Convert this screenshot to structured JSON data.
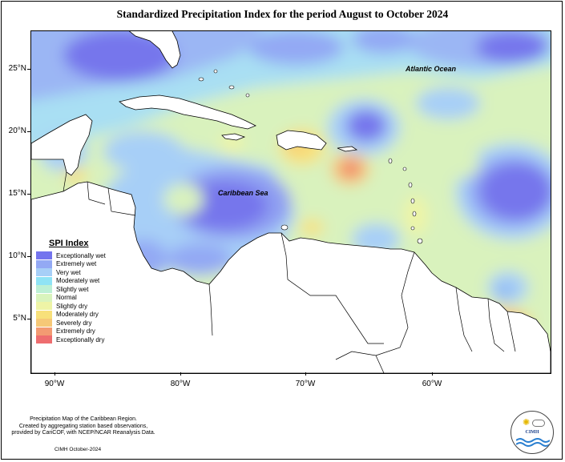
{
  "title": "Standardized Precipitation Index for the period August to October 2024",
  "axes": {
    "lat_labels": [
      "25°N",
      "20°N",
      "15°N",
      "10°N",
      "5°N"
    ],
    "lon_labels": [
      "90°W",
      "80°W",
      "70°W",
      "60°W"
    ]
  },
  "map_labels": {
    "atlantic": "Atlantic Ocean",
    "caribbean": "Caribbean Sea"
  },
  "legend": {
    "title": "SPI Index",
    "items": [
      {
        "label": "Exceptionally wet",
        "color": "#7474ee"
      },
      {
        "label": "Extremely wet",
        "color": "#93a9f4"
      },
      {
        "label": "Very wet",
        "color": "#a7cff7"
      },
      {
        "label": "Moderately wet",
        "color": "#8fe3f5"
      },
      {
        "label": "Slightly wet",
        "color": "#bdf0d5"
      },
      {
        "label": "Normal",
        "color": "#d9f4bd"
      },
      {
        "label": "Slightly dry",
        "color": "#eef4a6"
      },
      {
        "label": "Moderately dry",
        "color": "#f8e07a"
      },
      {
        "label": "Severely dry",
        "color": "#f6c877"
      },
      {
        "label": "Extremely dry",
        "color": "#f39a72"
      },
      {
        "label": "Exceptionally dry",
        "color": "#ee6d6f"
      }
    ]
  },
  "credits": {
    "line1": "Precipitation Map of the Caribbean Region.",
    "line2": "Created by aggregating station based observations,",
    "line3": "provided by CariCOF, with NCEP/NCAR Reanalysis Data.",
    "date": "CIMH October-2024"
  },
  "logo": {
    "text": "CIMH"
  }
}
